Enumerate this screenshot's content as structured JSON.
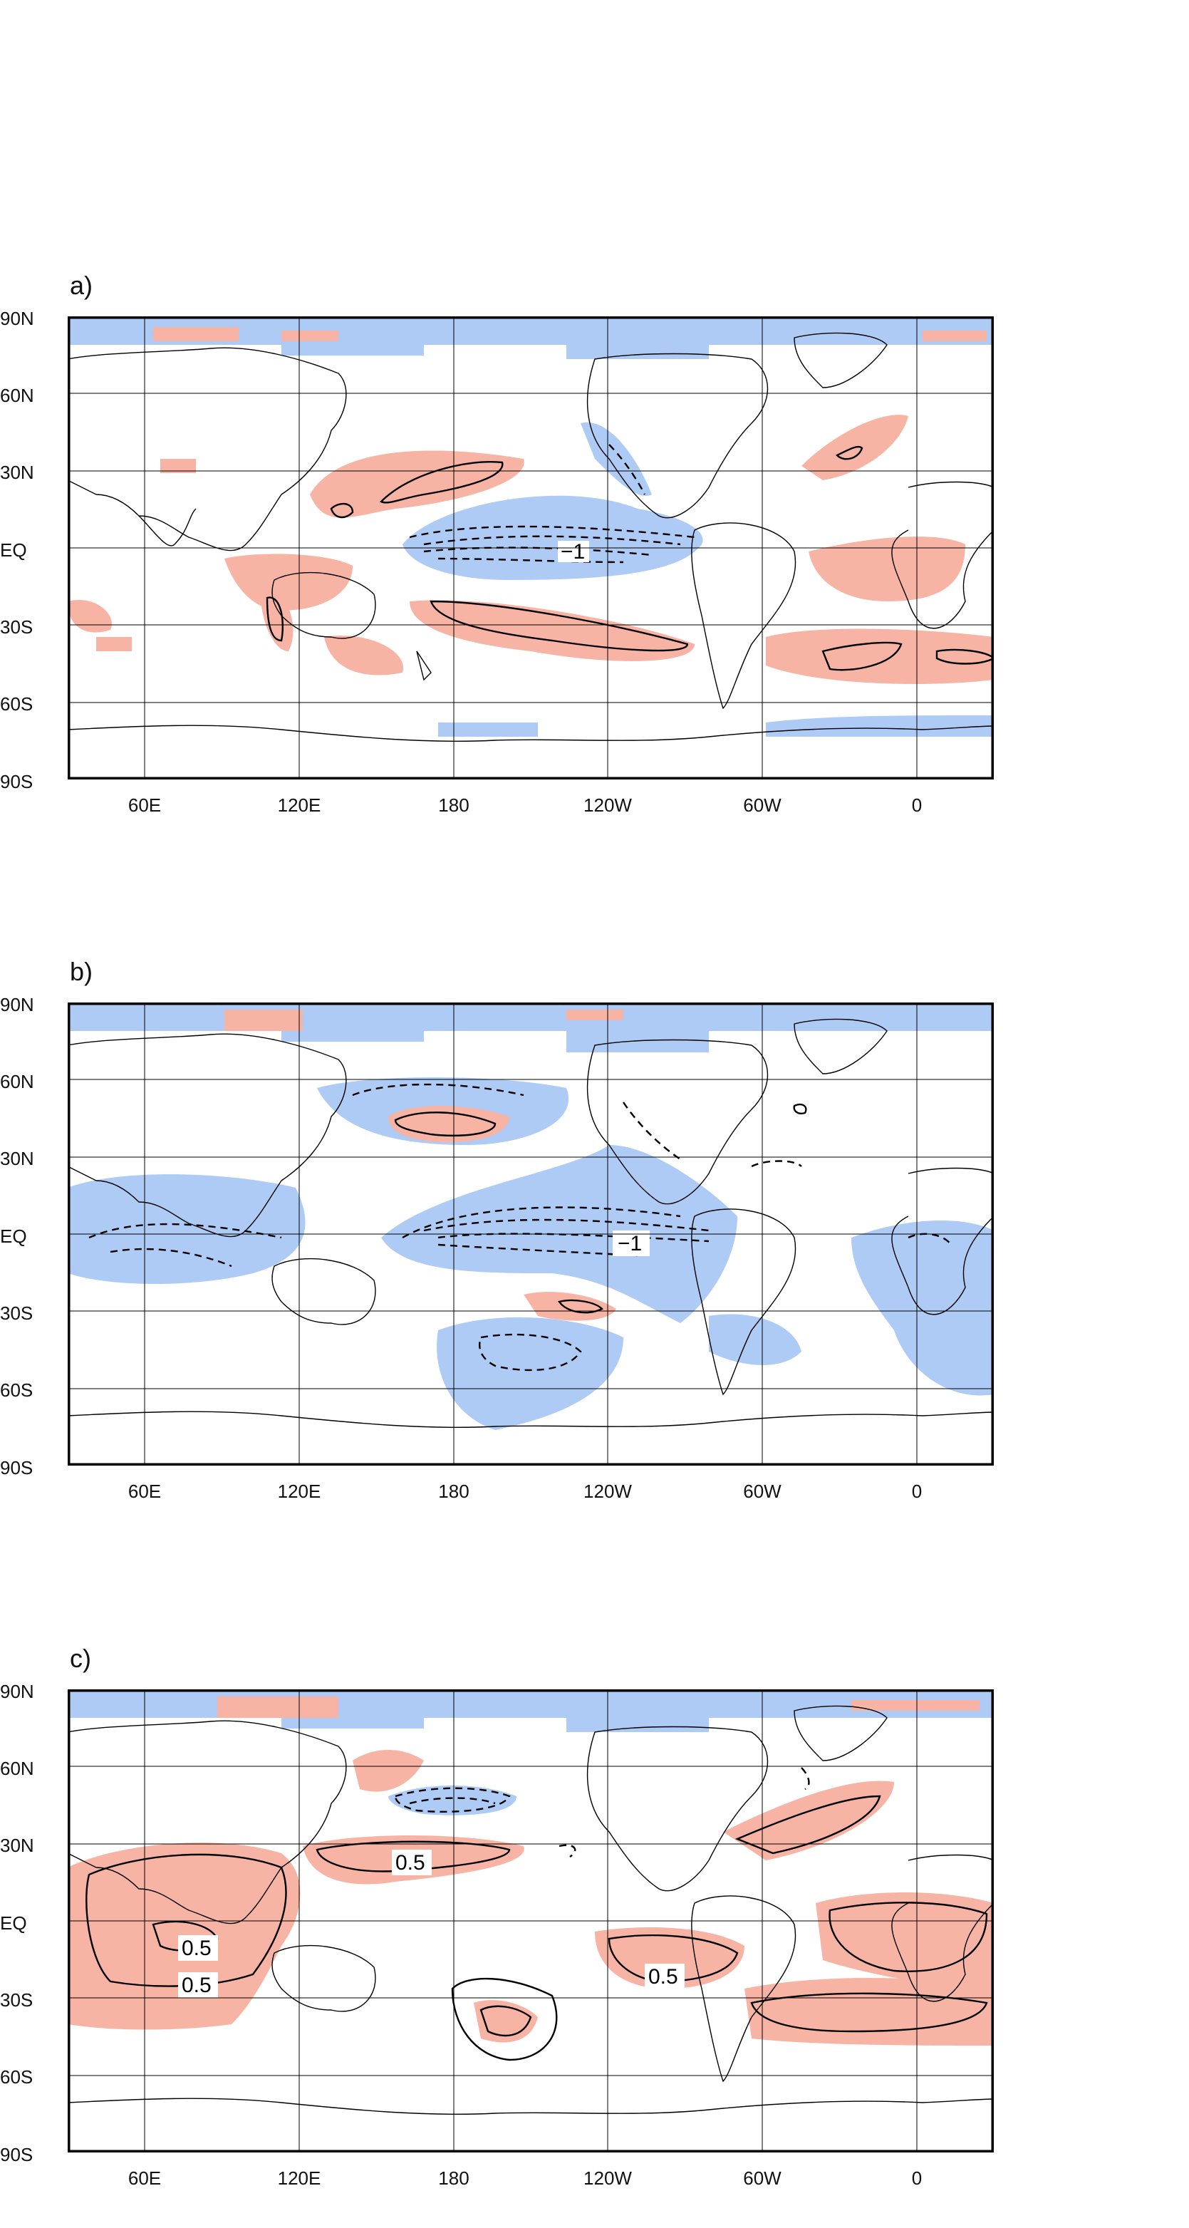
{
  "panels": [
    {
      "label": "a)",
      "contour_label": "−1"
    },
    {
      "label": "b)",
      "contour_label": "−1"
    },
    {
      "label": "c)",
      "contour_label_1": "0.5",
      "contour_label_2": "0.5",
      "contour_label_3": "0.5",
      "contour_label_4": "0.5"
    }
  ],
  "lat_labels": [
    "90N",
    "60N",
    "30N",
    "EQ",
    "30S",
    "60S",
    "90S"
  ],
  "lon_labels": [
    "60E",
    "120E",
    "180",
    "120W",
    "60W",
    "0"
  ],
  "colors": {
    "positive_shading": "#f7b4a5",
    "negative_shading": "#aecbf5",
    "frame": "#000000",
    "coastline": "#000000"
  }
}
